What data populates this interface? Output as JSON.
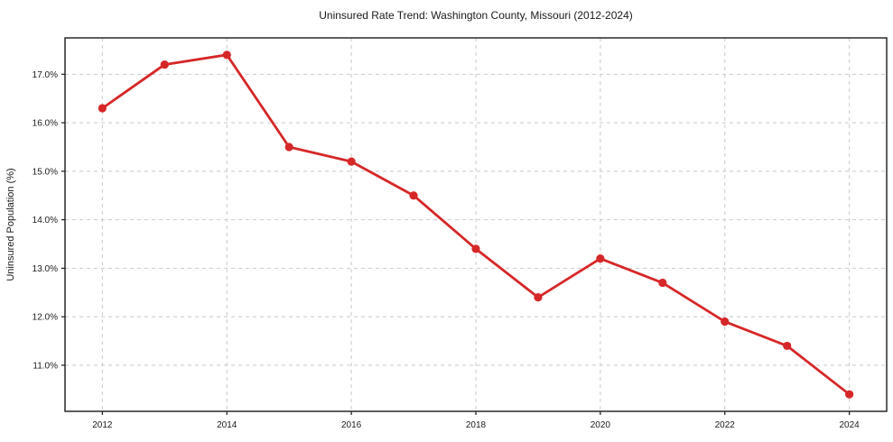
{
  "chart_data": {
    "type": "line",
    "title": "Uninsured Rate Trend: Washington County, Missouri (2012-2024)",
    "xlabel": "",
    "ylabel": "Uninsured Population (%)",
    "x": [
      2012,
      2013,
      2014,
      2015,
      2016,
      2017,
      2018,
      2019,
      2020,
      2021,
      2022,
      2023,
      2024
    ],
    "values": [
      16.3,
      17.2,
      17.4,
      15.5,
      15.2,
      14.5,
      13.4,
      12.4,
      13.2,
      12.7,
      11.9,
      11.4,
      10.4
    ],
    "xlim": [
      2011.4,
      2024.6
    ],
    "ylim": [
      10.05,
      17.75
    ],
    "xticks": [
      2012,
      2014,
      2016,
      2018,
      2020,
      2022,
      2024
    ],
    "xtick_labels": [
      "2012",
      "2014",
      "2016",
      "2018",
      "2020",
      "2022",
      "2024"
    ],
    "yticks": [
      11,
      12,
      13,
      14,
      15,
      16,
      17
    ],
    "ytick_labels": [
      "11.0%",
      "12.0%",
      "13.0%",
      "14.0%",
      "15.0%",
      "16.0%",
      "17.0%"
    ],
    "grid": true,
    "grid_style": "dashed",
    "legend": false,
    "marker": "circle"
  },
  "colors": {
    "line": "#d62728",
    "marker": "#d62728",
    "grid": "#c9c9c9",
    "spine": "#1a1a1a",
    "text": "#1a1a1a",
    "background": "#ffffff"
  }
}
